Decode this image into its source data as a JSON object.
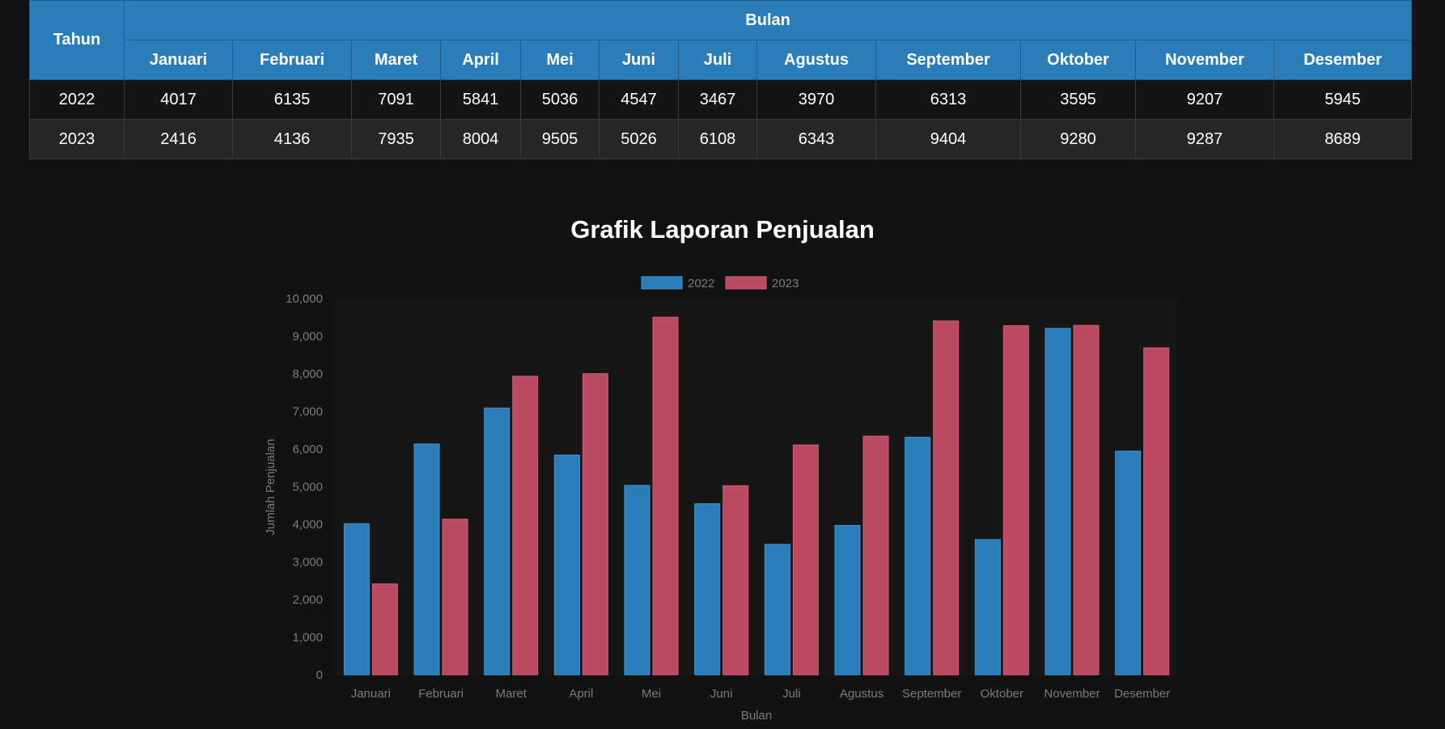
{
  "table": {
    "header_year": "Tahun",
    "header_month_group": "Bulan",
    "months": [
      "Januari",
      "Februari",
      "Maret",
      "April",
      "Mei",
      "Juni",
      "Juli",
      "Agustus",
      "September",
      "Oktober",
      "November",
      "Desember"
    ],
    "rows": [
      {
        "year": "2022",
        "values": [
          "4017",
          "6135",
          "7091",
          "5841",
          "5036",
          "4547",
          "3467",
          "3970",
          "6313",
          "3595",
          "9207",
          "5945"
        ]
      },
      {
        "year": "2023",
        "values": [
          "2416",
          "4136",
          "7935",
          "8004",
          "9505",
          "5026",
          "6108",
          "6343",
          "9404",
          "9280",
          "9287",
          "8689"
        ]
      }
    ]
  },
  "chart_title": "Grafik Laporan Penjualan",
  "chart_data": {
    "type": "bar",
    "title": "Grafik Laporan Penjualan",
    "xlabel": "Bulan",
    "ylabel": "Jumlah Penjualan",
    "ylim": [
      0,
      10000
    ],
    "yticks": [
      "0",
      "1,000",
      "2,000",
      "3,000",
      "4,000",
      "5,000",
      "6,000",
      "7,000",
      "8,000",
      "9,000",
      "10,000"
    ],
    "legend_position": "top-center",
    "categories": [
      "Januari",
      "Februari",
      "Maret",
      "April",
      "Mei",
      "Juni",
      "Juli",
      "Agustus",
      "September",
      "Oktober",
      "November",
      "Desember"
    ],
    "series": [
      {
        "name": "2022",
        "color": "#2a7db9",
        "values": [
          4017,
          6135,
          7091,
          5841,
          5036,
          4547,
          3467,
          3970,
          6313,
          3595,
          9207,
          5945
        ]
      },
      {
        "name": "2023",
        "color": "#b94a62",
        "values": [
          2416,
          4136,
          7935,
          8004,
          9505,
          5026,
          6108,
          6343,
          9404,
          9280,
          9287,
          8689
        ]
      }
    ]
  }
}
